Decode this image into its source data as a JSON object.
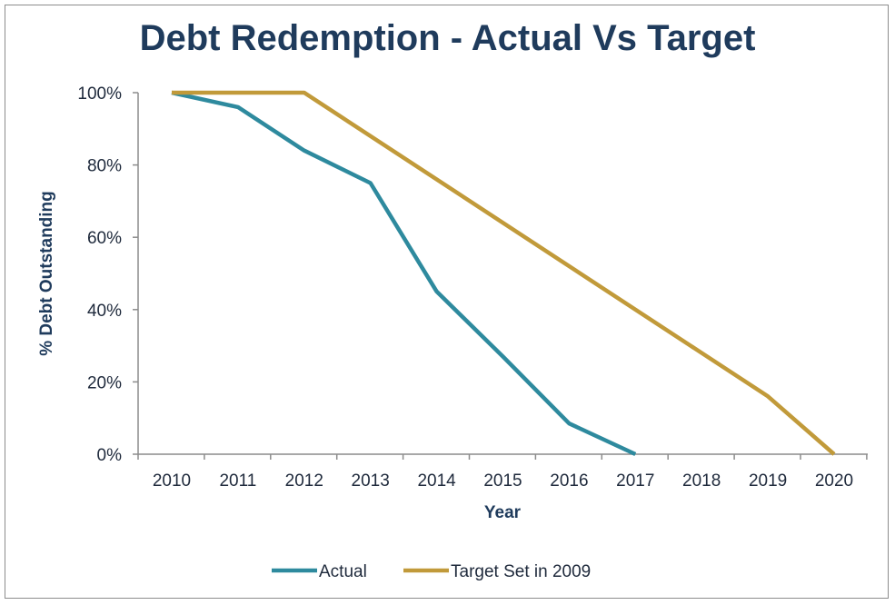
{
  "chart_data": {
    "type": "line",
    "title": "Debt Redemption - Actual Vs Target",
    "xlabel": "Year",
    "ylabel": "% Debt Outstanding",
    "x": [
      2010,
      2011,
      2012,
      2013,
      2014,
      2015,
      2016,
      2017,
      2018,
      2019,
      2020
    ],
    "x_tick_labels": [
      "2010",
      "2011",
      "2012",
      "2013",
      "2014",
      "2015",
      "2016",
      "2017",
      "2018",
      "2019",
      "2020"
    ],
    "y_tick_labels": [
      "0%",
      "20%",
      "40%",
      "60%",
      "80%",
      "100%"
    ],
    "y_ticks": [
      0,
      20,
      40,
      60,
      80,
      100
    ],
    "ylim": [
      0,
      100
    ],
    "grid": false,
    "legend_position": "bottom",
    "series": [
      {
        "name": "Actual",
        "color": "#2e8a9e",
        "points": [
          [
            2010,
            100
          ],
          [
            2011,
            96
          ],
          [
            2012,
            84
          ],
          [
            2013,
            75
          ],
          [
            2014,
            45
          ],
          [
            2015,
            27
          ],
          [
            2016,
            8.5
          ],
          [
            2017,
            0
          ]
        ]
      },
      {
        "name": "Target Set in 2009",
        "color": "#c19a3a",
        "points": [
          [
            2010,
            100
          ],
          [
            2011,
            100
          ],
          [
            2012,
            100
          ],
          [
            2019,
            16
          ],
          [
            2020,
            0
          ]
        ]
      }
    ]
  }
}
